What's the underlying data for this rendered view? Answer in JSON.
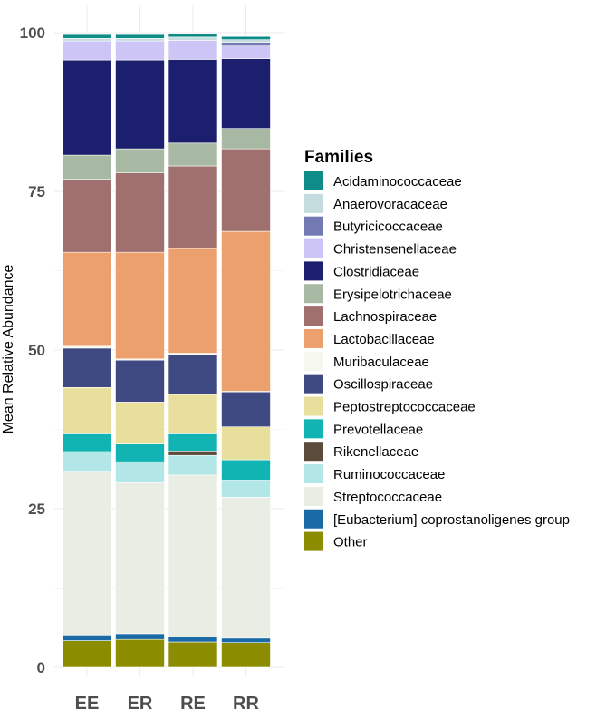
{
  "chart_data": {
    "type": "bar",
    "stacked": true,
    "title": "",
    "xlabel": "",
    "ylabel": "Mean Relative Abundance",
    "ylim": [
      0,
      100
    ],
    "yticks": [
      0,
      25,
      50,
      75,
      100
    ],
    "categories": [
      "EE",
      "ER",
      "RE",
      "RR"
    ],
    "legend_title": "Families",
    "legend_position": "right",
    "series": [
      {
        "name": "Acidaminococcaceae",
        "color": "#0e8c87",
        "values": [
          0.6,
          0.6,
          0.5,
          0.5
        ]
      },
      {
        "name": "Anaerovoracaceae",
        "color": "#c4dcde",
        "values": [
          0.4,
          0.4,
          0.5,
          0.4
        ]
      },
      {
        "name": "Butyricicoccaceae",
        "color": "#7279b3",
        "values": [
          0.0,
          0.0,
          0.0,
          0.6
        ]
      },
      {
        "name": "Christensenellaceae",
        "color": "#cdc5f5",
        "values": [
          3.0,
          3.0,
          3.0,
          2.0
        ]
      },
      {
        "name": "Clostridiaceae",
        "color": "#1c1f6e",
        "values": [
          15.0,
          14.0,
          13.2,
          11.0
        ]
      },
      {
        "name": "Erysipelotrichaceae",
        "color": "#a7b9a2",
        "values": [
          3.8,
          3.8,
          3.6,
          3.2
        ]
      },
      {
        "name": "Lachnospiraceae",
        "color": "#a0706e",
        "values": [
          11.5,
          12.5,
          13.0,
          13.0
        ]
      },
      {
        "name": "Lactobacillaceae",
        "color": "#eba06e",
        "values": [
          14.8,
          16.8,
          16.5,
          25.2
        ]
      },
      {
        "name": "Muribaculaceae",
        "color": "#f6f7ee",
        "values": [
          0.3,
          0.2,
          0.2,
          0.1
        ]
      },
      {
        "name": "Oscillospiraceae",
        "color": "#404a82",
        "values": [
          6.2,
          6.6,
          6.3,
          5.5
        ]
      },
      {
        "name": "Peptostreptococcaceae",
        "color": "#e8df9d",
        "values": [
          7.3,
          6.6,
          6.2,
          5.2
        ]
      },
      {
        "name": "Prevotellaceae",
        "color": "#12b3b3",
        "values": [
          2.8,
          2.8,
          2.7,
          3.2
        ]
      },
      {
        "name": "Rikenellaceae",
        "color": "#5a4b3b",
        "values": [
          0.0,
          0.0,
          0.7,
          0.0
        ]
      },
      {
        "name": "Ruminococcaceae",
        "color": "#b3e6e6",
        "values": [
          3.1,
          3.3,
          3.1,
          2.7
        ]
      },
      {
        "name": "Streptococcaceae",
        "color": "#e9ede3",
        "values": [
          25.8,
          23.8,
          25.5,
          22.2
        ]
      },
      {
        "name": "[Eubacterium] coprostanoligenes group",
        "color": "#1a6aa6",
        "values": [
          0.9,
          0.9,
          0.8,
          0.7
        ]
      },
      {
        "name": "Other",
        "color": "#8c8c00",
        "values": [
          4.2,
          4.4,
          4.0,
          3.9
        ]
      }
    ]
  }
}
